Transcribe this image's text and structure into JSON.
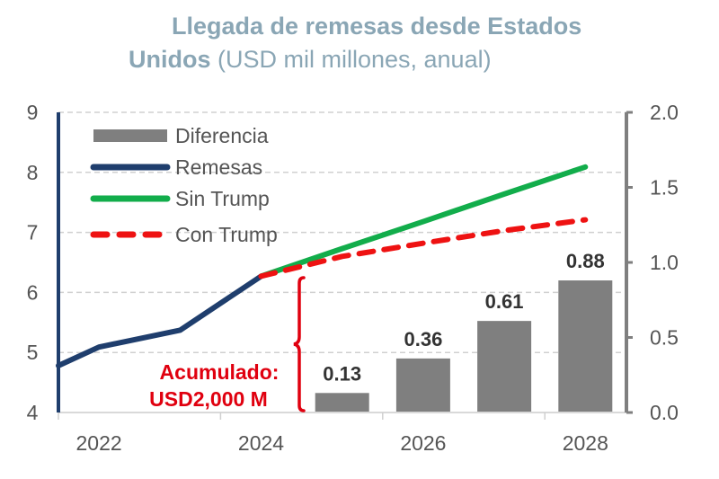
{
  "title": {
    "line1": "Llegada de remesas desde Estados",
    "line2_bold": "Unidos",
    "line2_regular": " (USD mil millones, anual)"
  },
  "colors": {
    "title": "#8aa6b5",
    "remesas": "#1f3e6d",
    "sin_trump": "#12ad4b",
    "con_trump": "#ee1212",
    "diferencia": "#7f7f7f",
    "annotation": "#e0000f",
    "axis_text": "#555555",
    "right_axis": "#7f7f7f",
    "grid": "#d0d0d0"
  },
  "chart_data": {
    "type": "bar+line",
    "title": "Llegada de remesas desde Estados Unidos (USD mil millones, anual)",
    "categories": [
      "2022",
      "2023",
      "2024",
      "2025",
      "2026",
      "2027",
      "2028"
    ],
    "x_tick_labels": [
      "2022",
      "2024",
      "2026",
      "2028"
    ],
    "left_axis": {
      "ylim": [
        4,
        9
      ],
      "ticks": [
        "9",
        "8",
        "7",
        "6",
        "5",
        "4"
      ]
    },
    "right_axis": {
      "ylim": [
        0.0,
        2.0
      ],
      "ticks": [
        "2.0",
        "1.5",
        "1.0",
        "0.5",
        "0.0"
      ]
    },
    "grid": true,
    "legend_position": "top-left",
    "legend": [
      "Diferencia",
      "Remesas",
      "Sin Trump",
      "Con Trump"
    ],
    "series": [
      {
        "name": "Remesas",
        "type": "line",
        "axis": "left",
        "x": [
          "2021.5",
          "2022",
          "2023",
          "2024"
        ],
        "values": [
          4.78,
          5.09,
          5.37,
          6.27
        ]
      },
      {
        "name": "Sin Trump",
        "type": "line",
        "axis": "left",
        "x": [
          "2024",
          "2025",
          "2026",
          "2027",
          "2028"
        ],
        "values": [
          6.27,
          6.73,
          7.18,
          7.64,
          8.09
        ]
      },
      {
        "name": "Con Trump",
        "type": "line-dashed",
        "axis": "left",
        "x": [
          "2024",
          "2025",
          "2026",
          "2027",
          "2028"
        ],
        "values": [
          6.27,
          6.6,
          6.82,
          7.03,
          7.21
        ]
      },
      {
        "name": "Diferencia",
        "type": "bar",
        "axis": "right",
        "x": [
          "2025",
          "2026",
          "2027",
          "2028"
        ],
        "values": [
          0.13,
          0.36,
          0.61,
          0.88
        ],
        "labels": [
          "0.13",
          "0.36",
          "0.61",
          "0.88"
        ]
      }
    ],
    "annotation": {
      "line1": "Acumulado:",
      "line2": "USD2,000 M",
      "type": "brace"
    }
  }
}
